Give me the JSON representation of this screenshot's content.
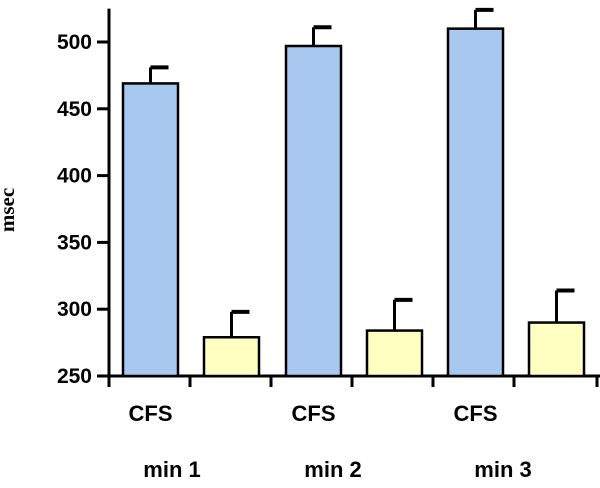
{
  "chart_data": {
    "type": "bar",
    "ylabel": "msec",
    "xlabel": "",
    "title": "",
    "ylim": [
      250,
      525
    ],
    "yticks": [
      250,
      300,
      350,
      400,
      450,
      500
    ],
    "ytick_labels": [
      "250",
      "300",
      "350",
      "400",
      "450",
      "500"
    ],
    "grid": false,
    "legend": "none",
    "groups": [
      {
        "label": "min 1",
        "bars": [
          {
            "label": "CFS",
            "value": 469,
            "error": 12,
            "color": "#a9c8f0"
          },
          {
            "label": "",
            "value": 279,
            "error": 19,
            "color": "#ffffc2"
          }
        ]
      },
      {
        "label": "min 2",
        "bars": [
          {
            "label": "CFS",
            "value": 497,
            "error": 14,
            "color": "#a9c8f0"
          },
          {
            "label": "",
            "value": 284,
            "error": 23,
            "color": "#ffffc2"
          }
        ]
      },
      {
        "label": "min 3",
        "bars": [
          {
            "label": "CFS",
            "value": 510,
            "error": 14,
            "color": "#a9c8f0"
          },
          {
            "label": "",
            "value": 290,
            "error": 24,
            "color": "#ffffc2"
          }
        ]
      }
    ]
  }
}
